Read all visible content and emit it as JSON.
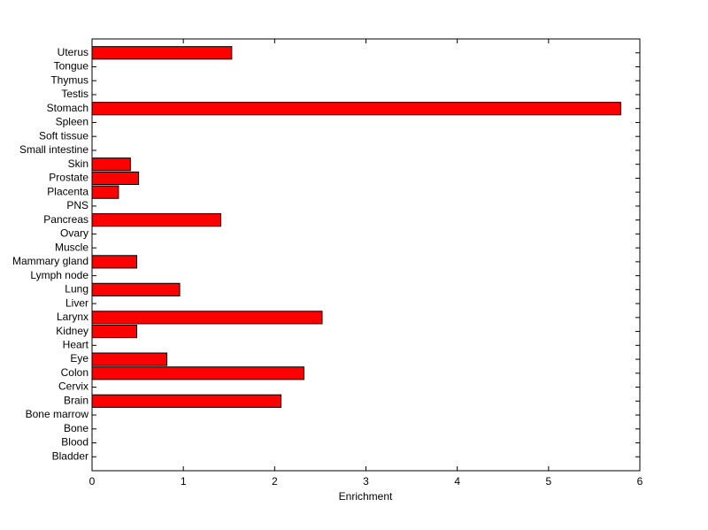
{
  "chart_data": {
    "type": "barh",
    "xlabel": "Enrichment",
    "categories": [
      "Bladder",
      "Blood",
      "Bone",
      "Bone marrow",
      "Brain",
      "Cervix",
      "Colon",
      "Eye",
      "Heart",
      "Kidney",
      "Larynx",
      "Liver",
      "Lung",
      "Lymph node",
      "Mammary gland",
      "Muscle",
      "Ovary",
      "Pancreas",
      "PNS",
      "Placenta",
      "Prostate",
      "Skin",
      "Small intestine",
      "Soft tissue",
      "Spleen",
      "Stomach",
      "Testis",
      "Thymus",
      "Tongue",
      "Uterus"
    ],
    "values": [
      0,
      0,
      0,
      0,
      2.07,
      0,
      2.32,
      0.82,
      0,
      0.49,
      2.52,
      0,
      0.96,
      0,
      0.49,
      0,
      0,
      1.41,
      0,
      0.29,
      0.51,
      0.42,
      0,
      0,
      0,
      5.79,
      0,
      0,
      0,
      1.53
    ],
    "color": "#ff0000",
    "xlim": [
      0,
      6
    ],
    "xticks": [
      0,
      1,
      2,
      3,
      4,
      5,
      6
    ]
  }
}
